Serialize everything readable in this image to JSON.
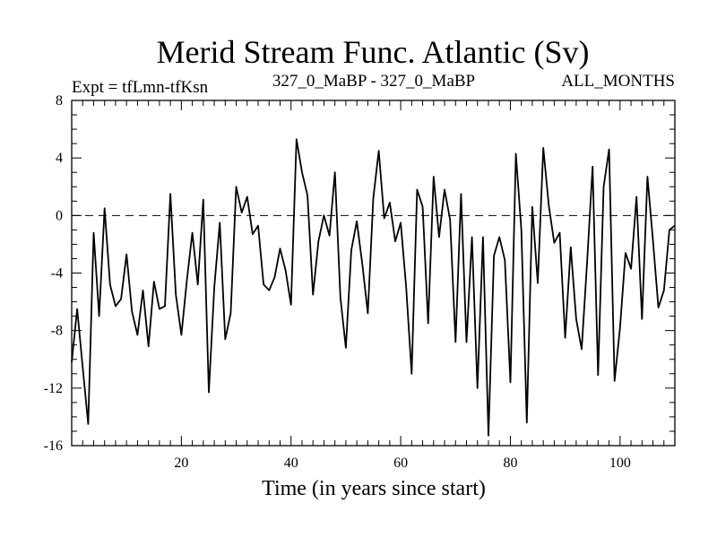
{
  "chart_data": {
    "type": "line",
    "title": "Merid Stream Func. Atlantic (Sv)",
    "subtitle_left": "Expt = tfLmn-tfKsn",
    "subtitle_center": "327_0_MaBP - 327_0_MaBP",
    "subtitle_right": "ALL_MONTHS",
    "xlabel": "Time (in years since start)",
    "ylabel": "",
    "xlim": [
      0,
      110
    ],
    "ylim": [
      -16,
      8
    ],
    "xticks": [
      20,
      40,
      60,
      80,
      100
    ],
    "yticks": [
      8,
      4,
      0,
      -4,
      -8,
      -12,
      -16
    ],
    "reference_line": 0,
    "series": [
      {
        "name": "Merid Stream Func. Atlantic",
        "color": "#000000",
        "x": [
          0,
          1,
          2,
          3,
          4,
          5,
          6,
          7,
          8,
          9,
          10,
          11,
          12,
          13,
          14,
          15,
          16,
          17,
          18,
          19,
          20,
          21,
          22,
          23,
          24,
          25,
          26,
          27,
          28,
          29,
          30,
          31,
          32,
          33,
          34,
          35,
          36,
          37,
          38,
          39,
          40,
          41,
          42,
          43,
          44,
          45,
          46,
          47,
          48,
          49,
          50,
          51,
          52,
          53,
          54,
          55,
          56,
          57,
          58,
          59,
          60,
          61,
          62,
          63,
          64,
          65,
          66,
          67,
          68,
          69,
          70,
          71,
          72,
          73,
          74,
          75,
          76,
          77,
          78,
          79,
          80,
          81,
          82,
          83,
          84,
          85,
          86,
          87,
          88,
          89,
          90,
          91,
          92,
          93,
          94,
          95,
          96,
          97,
          98,
          99,
          100,
          101,
          102,
          103,
          104,
          105,
          106,
          107,
          108,
          109,
          110
        ],
        "values": [
          -10.2,
          -6.5,
          -10.5,
          -14.5,
          -1.2,
          -7.0,
          0.5,
          -4.8,
          -6.3,
          -5.8,
          -2.7,
          -6.7,
          -8.3,
          -5.2,
          -9.1,
          -4.6,
          -6.5,
          -6.3,
          1.5,
          -5.5,
          -8.3,
          -4.5,
          -1.2,
          -4.8,
          1.1,
          -12.3,
          -5.0,
          -0.5,
          -8.6,
          -6.8,
          2.0,
          0.2,
          1.3,
          -1.3,
          -0.7,
          -4.8,
          -5.2,
          -4.3,
          -2.3,
          -3.8,
          -6.2,
          5.3,
          3.0,
          1.4,
          -5.5,
          -1.8,
          0.0,
          -1.4,
          3.0,
          -5.7,
          -9.2,
          -2.4,
          -0.4,
          -3.4,
          -6.8,
          1.2,
          4.5,
          -0.2,
          0.9,
          -1.8,
          -0.5,
          -5.0,
          -11.0,
          1.8,
          0.6,
          -7.5,
          2.7,
          -1.5,
          1.8,
          -0.3,
          -8.8,
          1.5,
          -8.8,
          -1.5,
          -12.0,
          -1.5,
          -15.3,
          -2.8,
          -1.5,
          -3.1,
          -11.6,
          4.3,
          -1.0,
          -14.4,
          0.6,
          -4.7,
          4.7,
          0.7,
          -1.9,
          -1.2,
          -8.5,
          -2.2,
          -7.2,
          -9.3,
          -3.2,
          3.4,
          -11.1,
          2.0,
          4.6,
          -11.5,
          -7.8,
          -2.6,
          -3.7,
          1.3,
          -7.2,
          2.7,
          -1.7,
          -6.4,
          -5.2,
          -1.0,
          -0.7
        ]
      }
    ]
  }
}
